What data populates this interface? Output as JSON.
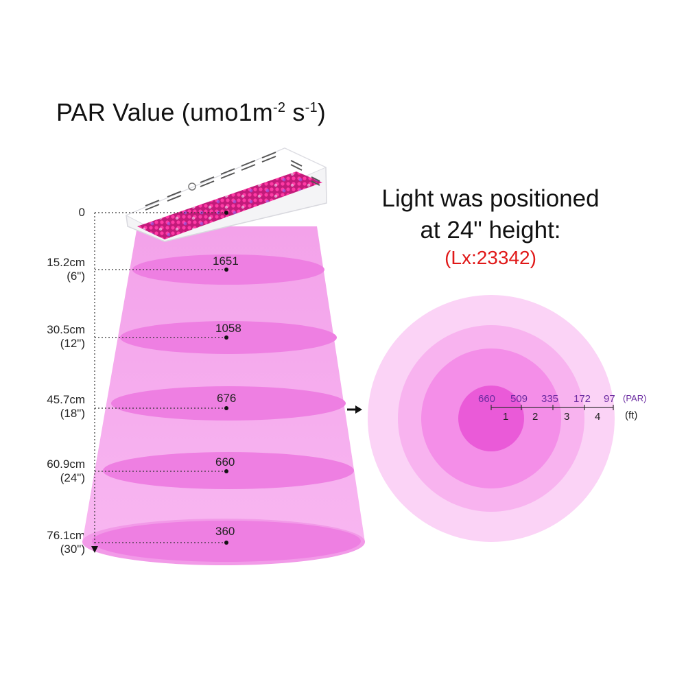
{
  "title": {
    "text": "PAR Value (umo1m",
    "sup1": "-2",
    "mid": " s",
    "sup2": "-1",
    "close": ")"
  },
  "headline": {
    "line1": "Light was positioned",
    "line2": "at 24\" height:",
    "lux": "(Lx:23342)"
  },
  "heights": [
    {
      "cm": "0",
      "inch": ""
    },
    {
      "cm": "15.2cm",
      "inch": "(6\")"
    },
    {
      "cm": "30.5cm",
      "inch": "(12\")"
    },
    {
      "cm": "45.7cm",
      "inch": "(18\")"
    },
    {
      "cm": "60.9cm",
      "inch": "(24\")"
    },
    {
      "cm": "76.1cm",
      "inch": "(30\")"
    }
  ],
  "par_values": [
    "1651",
    "1058",
    "676",
    "660",
    "360"
  ],
  "ring": {
    "values": [
      "660",
      "509",
      "335",
      "172",
      "97"
    ],
    "values_unit": "(PAR)",
    "distances": [
      "1",
      "2",
      "3",
      "4"
    ],
    "distance_unit": "(ft)"
  },
  "colors": {
    "cone": "#f6a6ee",
    "ellipse": "#ee7fe2",
    "ring_outer": "#fbd3f6",
    "ring_2": "#f8b3ef",
    "ring_3": "#f48ee8",
    "ring_4": "#ef6fe0",
    "ring_center": "#e84ad4",
    "lux": "#e01818"
  }
}
